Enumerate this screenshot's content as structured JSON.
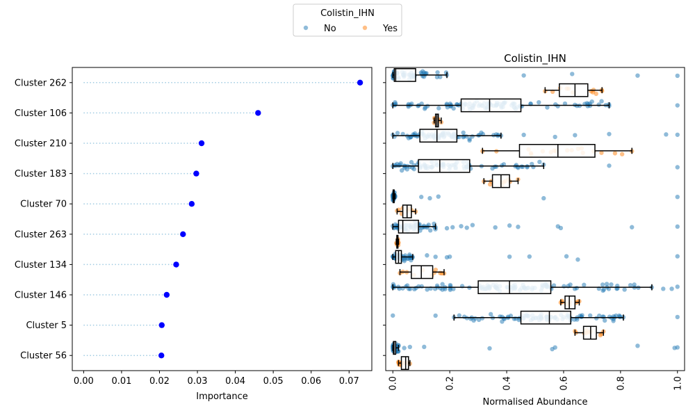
{
  "legend": {
    "title": "Colistin_IHN",
    "placement": "top-center",
    "entries": [
      {
        "label": "No",
        "color": "#1f77b4"
      },
      {
        "label": "Yes",
        "color": "#ff7f0e"
      }
    ]
  },
  "chart_data": [
    {
      "type": "scatter",
      "variant": "lollipop",
      "title": "",
      "xlabel": "Importance",
      "ylabel": "",
      "xlim": [
        -0.003,
        0.076
      ],
      "xticks": [
        0.0,
        0.01,
        0.02,
        0.03,
        0.04,
        0.05,
        0.06,
        0.07
      ],
      "xtick_labels": [
        "0.00",
        "0.01",
        "0.02",
        "0.03",
        "0.04",
        "0.05",
        "0.06",
        "0.07"
      ],
      "grid": false,
      "marker_color": "#0000ff",
      "stem_color": "#9ecae1",
      "categories": [
        "Cluster 262",
        "Cluster 106",
        "Cluster 210",
        "Cluster 183",
        "Cluster 70",
        "Cluster 263",
        "Cluster 134",
        "Cluster 146",
        "Cluster 5",
        "Cluster 56"
      ],
      "values": [
        0.0729,
        0.046,
        0.0311,
        0.0297,
        0.0285,
        0.0262,
        0.0244,
        0.0219,
        0.0206,
        0.0205
      ]
    },
    {
      "type": "box",
      "title": "Colistin_IHN",
      "xlabel": "Normalised Abundance",
      "ylabel": "",
      "xlim": [
        -0.025,
        1.025
      ],
      "xticks": [
        0.0,
        0.2,
        0.4,
        0.6,
        0.8,
        1.0
      ],
      "xtick_labels": [
        "0.0",
        "0.2",
        "0.4",
        "0.6",
        "0.8",
        "1.0"
      ],
      "xtick_rotation": 90,
      "grid": false,
      "categories": [
        "Cluster 262",
        "Cluster 106",
        "Cluster 210",
        "Cluster 183",
        "Cluster 70",
        "Cluster 263",
        "Cluster 134",
        "Cluster 146",
        "Cluster 5",
        "Cluster 56"
      ],
      "series": [
        {
          "name": "No",
          "color": "#1f77b4",
          "boxes": [
            {
              "whislo": 0.0,
              "q1": 0.005,
              "med": 0.01,
              "q3": 0.08,
              "whishi": 0.19
            },
            {
              "whislo": 0.0,
              "q1": 0.24,
              "med": 0.34,
              "q3": 0.45,
              "whishi": 0.76
            },
            {
              "whislo": 0.0,
              "q1": 0.095,
              "med": 0.155,
              "q3": 0.225,
              "whishi": 0.38
            },
            {
              "whislo": 0.0,
              "q1": 0.09,
              "med": 0.165,
              "q3": 0.27,
              "whishi": 0.53
            },
            {
              "whislo": 0.0,
              "q1": 0.001,
              "med": 0.002,
              "q3": 0.004,
              "whishi": 0.008
            },
            {
              "whislo": 0.0,
              "q1": 0.02,
              "med": 0.035,
              "q3": 0.09,
              "whishi": 0.15
            },
            {
              "whislo": 0.0,
              "q1": 0.01,
              "med": 0.02,
              "q3": 0.03,
              "whishi": 0.07
            },
            {
              "whislo": 0.0,
              "q1": 0.3,
              "med": 0.41,
              "q3": 0.555,
              "whishi": 0.91
            },
            {
              "whislo": 0.215,
              "q1": 0.45,
              "med": 0.55,
              "q3": 0.625,
              "whishi": 0.81
            },
            {
              "whislo": 0.0,
              "q1": 0.002,
              "med": 0.004,
              "q3": 0.01,
              "whishi": 0.02
            }
          ],
          "outliers": [
            [
              0.46,
              0.63,
              0.86,
              1.0
            ],
            [
              1.0
            ],
            [
              0.46,
              0.57,
              0.64,
              0.76,
              0.96,
              1.0
            ],
            [
              0.76,
              1.0
            ],
            [
              0.1,
              0.13,
              0.16,
              0.53,
              1.0
            ],
            [
              0.19,
              0.21,
              0.24,
              0.26,
              0.28,
              0.36,
              0.41,
              0.44,
              0.58,
              0.59,
              0.84,
              1.0
            ],
            [
              0.12,
              0.15,
              0.19,
              0.2,
              0.41,
              0.48,
              0.61,
              0.65,
              1.0
            ],
            [
              0.95,
              0.98,
              1.0
            ],
            [
              0.0,
              0.15,
              1.0
            ],
            [
              0.04,
              0.06,
              0.11,
              0.34,
              0.56,
              0.57,
              0.86,
              0.99,
              1.0
            ]
          ]
        },
        {
          "name": "Yes",
          "color": "#ff7f0e",
          "boxes": [
            {
              "whislo": 0.535,
              "q1": 0.585,
              "med": 0.64,
              "q3": 0.685,
              "whishi": 0.735
            },
            {
              "whislo": 0.145,
              "q1": 0.15,
              "med": 0.155,
              "q3": 0.16,
              "whishi": 0.17
            },
            {
              "whislo": 0.315,
              "q1": 0.445,
              "med": 0.58,
              "q3": 0.71,
              "whishi": 0.84
            },
            {
              "whislo": 0.32,
              "q1": 0.35,
              "med": 0.38,
              "q3": 0.41,
              "whishi": 0.44
            },
            {
              "whislo": 0.015,
              "q1": 0.035,
              "med": 0.05,
              "q3": 0.065,
              "whishi": 0.08
            },
            {
              "whislo": 0.012,
              "q1": 0.014,
              "med": 0.016,
              "q3": 0.018,
              "whishi": 0.02
            },
            {
              "whislo": 0.025,
              "q1": 0.065,
              "med": 0.1,
              "q3": 0.14,
              "whishi": 0.18
            },
            {
              "whislo": 0.59,
              "q1": 0.605,
              "med": 0.62,
              "q3": 0.64,
              "whishi": 0.655
            },
            {
              "whislo": 0.64,
              "q1": 0.67,
              "med": 0.695,
              "q3": 0.715,
              "whishi": 0.74
            },
            {
              "whislo": 0.02,
              "q1": 0.03,
              "med": 0.045,
              "q3": 0.055,
              "whishi": 0.06
            }
          ],
          "outliers": [
            [],
            [],
            [],
            [],
            [],
            [],
            [],
            [],
            [],
            []
          ]
        }
      ]
    }
  ]
}
